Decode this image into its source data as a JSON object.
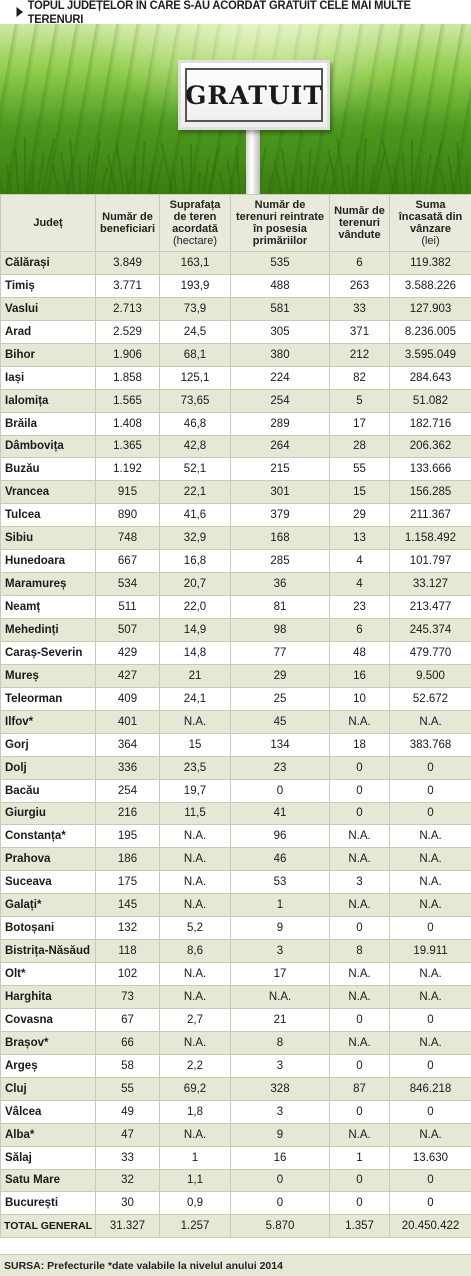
{
  "title": "TOPUL JUDEȚELOR ÎN CARE S-AU ACORDAT GRATUIT CELE MAI MULTE TERENURI",
  "sign_text": "GRATUIT",
  "headers": {
    "county": "Județ",
    "beneficiaries": "Număr de beneficiari",
    "area": "Suprafața de teren acordată",
    "area_unit": "(hectare)",
    "returned": "Număr de terenuri reintrate în posesia primăriilor",
    "sold": "Număr de terenuri vândute",
    "revenue": "Suma încasată din vânzare",
    "revenue_unit": "(lei)"
  },
  "rows": [
    {
      "county": "Călărași",
      "beneficiaries": "3.849",
      "area": "163,1",
      "returned": "535",
      "sold": "6",
      "revenue": "119.382"
    },
    {
      "county": "Timiș",
      "beneficiaries": "3.771",
      "area": "193,9",
      "returned": "488",
      "sold": "263",
      "revenue": "3.588.226"
    },
    {
      "county": "Vaslui",
      "beneficiaries": "2.713",
      "area": "73,9",
      "returned": "581",
      "sold": "33",
      "revenue": "127.903"
    },
    {
      "county": "Arad",
      "beneficiaries": "2.529",
      "area": "24,5",
      "returned": "305",
      "sold": "371",
      "revenue": "8.236.005"
    },
    {
      "county": "Bihor",
      "beneficiaries": "1.906",
      "area": "68,1",
      "returned": "380",
      "sold": "212",
      "revenue": "3.595.049"
    },
    {
      "county": "Iași",
      "beneficiaries": "1.858",
      "area": "125,1",
      "returned": "224",
      "sold": "82",
      "revenue": "284.643"
    },
    {
      "county": "Ialomița",
      "beneficiaries": "1.565",
      "area": "73,65",
      "returned": "254",
      "sold": "5",
      "revenue": "51.082"
    },
    {
      "county": "Brăila",
      "beneficiaries": "1.408",
      "area": "46,8",
      "returned": "289",
      "sold": "17",
      "revenue": "182.716"
    },
    {
      "county": "Dâmbovița",
      "beneficiaries": "1.365",
      "area": "42,8",
      "returned": "264",
      "sold": "28",
      "revenue": "206.362"
    },
    {
      "county": "Buzău",
      "beneficiaries": "1.192",
      "area": "52,1",
      "returned": "215",
      "sold": "55",
      "revenue": "133.666"
    },
    {
      "county": "Vrancea",
      "beneficiaries": "915",
      "area": "22,1",
      "returned": "301",
      "sold": "15",
      "revenue": "156.285"
    },
    {
      "county": "Tulcea",
      "beneficiaries": "890",
      "area": "41,6",
      "returned": "379",
      "sold": "29",
      "revenue": "211.367"
    },
    {
      "county": "Sibiu",
      "beneficiaries": "748",
      "area": "32,9",
      "returned": "168",
      "sold": "13",
      "revenue": "1.158.492"
    },
    {
      "county": "Hunedoara",
      "beneficiaries": "667",
      "area": "16,8",
      "returned": "285",
      "sold": "4",
      "revenue": "101.797"
    },
    {
      "county": "Maramureș",
      "beneficiaries": "534",
      "area": "20,7",
      "returned": "36",
      "sold": "4",
      "revenue": "33.127"
    },
    {
      "county": "Neamț",
      "beneficiaries": "511",
      "area": "22,0",
      "returned": "81",
      "sold": "23",
      "revenue": "213.477"
    },
    {
      "county": "Mehedinți",
      "beneficiaries": "507",
      "area": "14,9",
      "returned": "98",
      "sold": "6",
      "revenue": "245.374"
    },
    {
      "county": "Caraș-Severin",
      "beneficiaries": "429",
      "area": "14,8",
      "returned": "77",
      "sold": "48",
      "revenue": "479.770"
    },
    {
      "county": "Mureș",
      "beneficiaries": "427",
      "area": "21",
      "returned": "29",
      "sold": "16",
      "revenue": "9.500"
    },
    {
      "county": "Teleorman",
      "beneficiaries": "409",
      "area": "24,1",
      "returned": "25",
      "sold": "10",
      "revenue": "52.672"
    },
    {
      "county": "Ilfov*",
      "beneficiaries": "401",
      "area": "N.A.",
      "returned": "45",
      "sold": "N.A.",
      "revenue": "N.A."
    },
    {
      "county": "Gorj",
      "beneficiaries": "364",
      "area": "15",
      "returned": "134",
      "sold": "18",
      "revenue": "383.768"
    },
    {
      "county": "Dolj",
      "beneficiaries": "336",
      "area": "23,5",
      "returned": "23",
      "sold": "0",
      "revenue": "0"
    },
    {
      "county": "Bacău",
      "beneficiaries": "254",
      "area": "19,7",
      "returned": "0",
      "sold": "0",
      "revenue": "0"
    },
    {
      "county": "Giurgiu",
      "beneficiaries": "216",
      "area": "11,5",
      "returned": "41",
      "sold": "0",
      "revenue": "0"
    },
    {
      "county": "Constanța*",
      "beneficiaries": "195",
      "area": "N.A.",
      "returned": "96",
      "sold": "N.A.",
      "revenue": "N.A."
    },
    {
      "county": "Prahova",
      "beneficiaries": "186",
      "area": "N.A.",
      "returned": "46",
      "sold": "N.A.",
      "revenue": "N.A."
    },
    {
      "county": "Suceava",
      "beneficiaries": "175",
      "area": "N.A.",
      "returned": "53",
      "sold": "3",
      "revenue": "N.A."
    },
    {
      "county": "Galați*",
      "beneficiaries": "145",
      "area": "N.A.",
      "returned": "1",
      "sold": "N.A.",
      "revenue": "N.A."
    },
    {
      "county": "Botoșani",
      "beneficiaries": "132",
      "area": "5,2",
      "returned": "9",
      "sold": "0",
      "revenue": "0"
    },
    {
      "county": "Bistrița-Năsăud",
      "beneficiaries": "118",
      "area": "8,6",
      "returned": "3",
      "sold": "8",
      "revenue": "19.911"
    },
    {
      "county": "Olt*",
      "beneficiaries": "102",
      "area": "N.A.",
      "returned": "17",
      "sold": "N.A.",
      "revenue": "N.A."
    },
    {
      "county": "Harghita",
      "beneficiaries": "73",
      "area": "N.A.",
      "returned": "N.A.",
      "sold": "N.A.",
      "revenue": "N.A."
    },
    {
      "county": "Covasna",
      "beneficiaries": "67",
      "area": "2,7",
      "returned": "21",
      "sold": "0",
      "revenue": "0"
    },
    {
      "county": "Brașov*",
      "beneficiaries": "66",
      "area": "N.A.",
      "returned": "8",
      "sold": "N.A.",
      "revenue": "N.A."
    },
    {
      "county": "Argeș",
      "beneficiaries": "58",
      "area": "2,2",
      "returned": "3",
      "sold": "0",
      "revenue": "0"
    },
    {
      "county": "Cluj",
      "beneficiaries": "55",
      "area": "69,2",
      "returned": "328",
      "sold": "87",
      "revenue": "846.218"
    },
    {
      "county": "Vâlcea",
      "beneficiaries": "49",
      "area": "1,8",
      "returned": "3",
      "sold": "0",
      "revenue": "0"
    },
    {
      "county": "Alba*",
      "beneficiaries": "47",
      "area": "N.A.",
      "returned": "9",
      "sold": "N.A.",
      "revenue": "N.A."
    },
    {
      "county": "Sălaj",
      "beneficiaries": "33",
      "area": "1",
      "returned": "16",
      "sold": "1",
      "revenue": "13.630"
    },
    {
      "county": "Satu Mare",
      "beneficiaries": "32",
      "area": "1,1",
      "returned": "0",
      "sold": "0",
      "revenue": "0"
    },
    {
      "county": "București",
      "beneficiaries": "30",
      "area": "0,9",
      "returned": "0",
      "sold": "0",
      "revenue": "0"
    }
  ],
  "total": {
    "county": "TOTAL GENERAL",
    "beneficiaries": "31.327",
    "area": "1.257",
    "returned": "5.870",
    "sold": "1.357",
    "revenue": "20.450.422"
  },
  "source": "SURSA: Prefecturile *date valabile la nivelul anului 2014",
  "colors": {
    "grass": "#4e9a20",
    "row_band": "#e6e8d6",
    "grid": "#c8cbb8"
  }
}
